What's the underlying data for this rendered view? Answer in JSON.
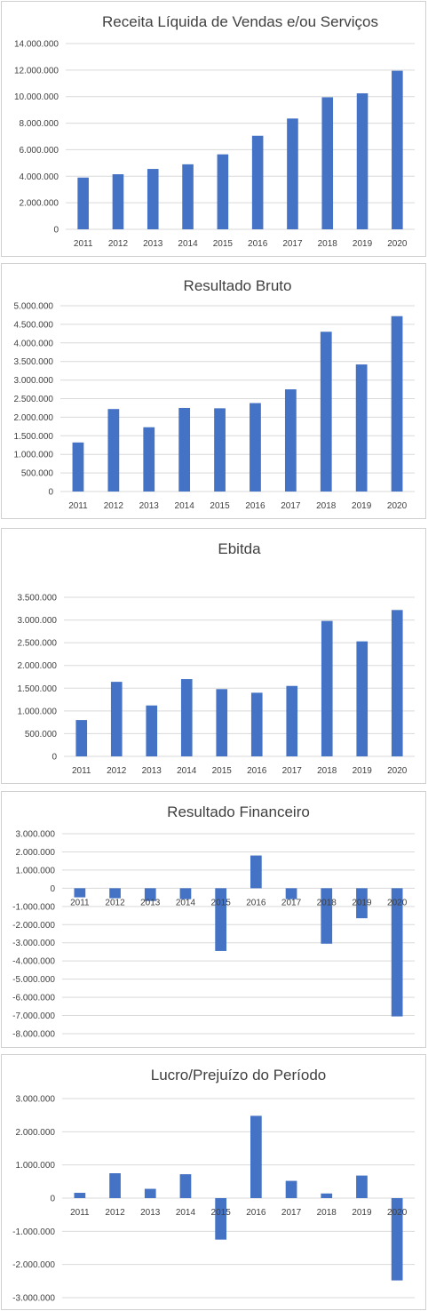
{
  "palette": {
    "bar_color": "#4472c4",
    "grid_color": "#d9d9d9",
    "text_color": "#404040"
  },
  "chart_data": [
    {
      "type": "bar",
      "title": "Receita Líquida de Vendas e/ou Serviços",
      "categories": [
        "2011",
        "2012",
        "2013",
        "2014",
        "2015",
        "2016",
        "2017",
        "2018",
        "2019",
        "2020"
      ],
      "values": [
        3900000,
        4150000,
        4550000,
        4900000,
        5650000,
        7050000,
        8350000,
        9950000,
        10250000,
        11950000
      ],
      "yticks": [
        "0",
        "2.000.000",
        "4.000.000",
        "6.000.000",
        "8.000.000",
        "10.000.000",
        "12.000.000",
        "14.000.000"
      ],
      "ylim": [
        0,
        14000000
      ],
      "grid": true
    },
    {
      "type": "bar",
      "title": "Resultado Bruto",
      "categories": [
        "2011",
        "2012",
        "2013",
        "2014",
        "2015",
        "2016",
        "2017",
        "2018",
        "2019",
        "2020"
      ],
      "values": [
        1320000,
        2220000,
        1730000,
        2250000,
        2240000,
        2380000,
        2750000,
        4300000,
        3420000,
        4720000
      ],
      "yticks": [
        "0",
        "500.000",
        "1.000.000",
        "1.500.000",
        "2.000.000",
        "2.500.000",
        "3.000.000",
        "3.500.000",
        "4.000.000",
        "4.500.000",
        "5.000.000"
      ],
      "ylim": [
        0,
        5000000
      ],
      "grid": true
    },
    {
      "type": "bar",
      "title": "Ebitda",
      "categories": [
        "2011",
        "2012",
        "2013",
        "2014",
        "2015",
        "2016",
        "2017",
        "2018",
        "2019",
        "2020"
      ],
      "values": [
        800000,
        1640000,
        1120000,
        1700000,
        1480000,
        1400000,
        1550000,
        2980000,
        2530000,
        3220000
      ],
      "yticks": [
        "0",
        "500.000",
        "1.000.000",
        "1.500.000",
        "2.000.000",
        "2.500.000",
        "3.000.000",
        "3.500.000"
      ],
      "ylim": [
        0,
        3500000
      ],
      "grid": true
    },
    {
      "type": "bar",
      "title": "Resultado Financeiro",
      "categories": [
        "2011",
        "2012",
        "2013",
        "2014",
        "2015",
        "2016",
        "2017",
        "2018",
        "2019",
        "2020"
      ],
      "values": [
        -500000,
        -550000,
        -700000,
        -600000,
        -3450000,
        1800000,
        -600000,
        -3050000,
        -1650000,
        -7050000
      ],
      "yticks": [
        "-8.000.000",
        "-7.000.000",
        "-6.000.000",
        "-5.000.000",
        "-4.000.000",
        "-3.000.000",
        "-2.000.000",
        "-1.000.000",
        "0",
        "1.000.000",
        "2.000.000",
        "3.000.000"
      ],
      "ylim": [
        -8000000,
        3000000
      ],
      "grid": true
    },
    {
      "type": "bar",
      "title": "Lucro/Prejuízo do Período",
      "categories": [
        "2011",
        "2012",
        "2013",
        "2014",
        "2015",
        "2016",
        "2017",
        "2018",
        "2019",
        "2020"
      ],
      "values": [
        160000,
        750000,
        280000,
        720000,
        -1250000,
        2480000,
        520000,
        140000,
        680000,
        -2480000
      ],
      "yticks": [
        "-3.000.000",
        "-2.000.000",
        "-1.000.000",
        "0",
        "1.000.000",
        "2.000.000",
        "3.000.000"
      ],
      "ylim": [
        -3000000,
        3000000
      ],
      "grid": true
    }
  ]
}
